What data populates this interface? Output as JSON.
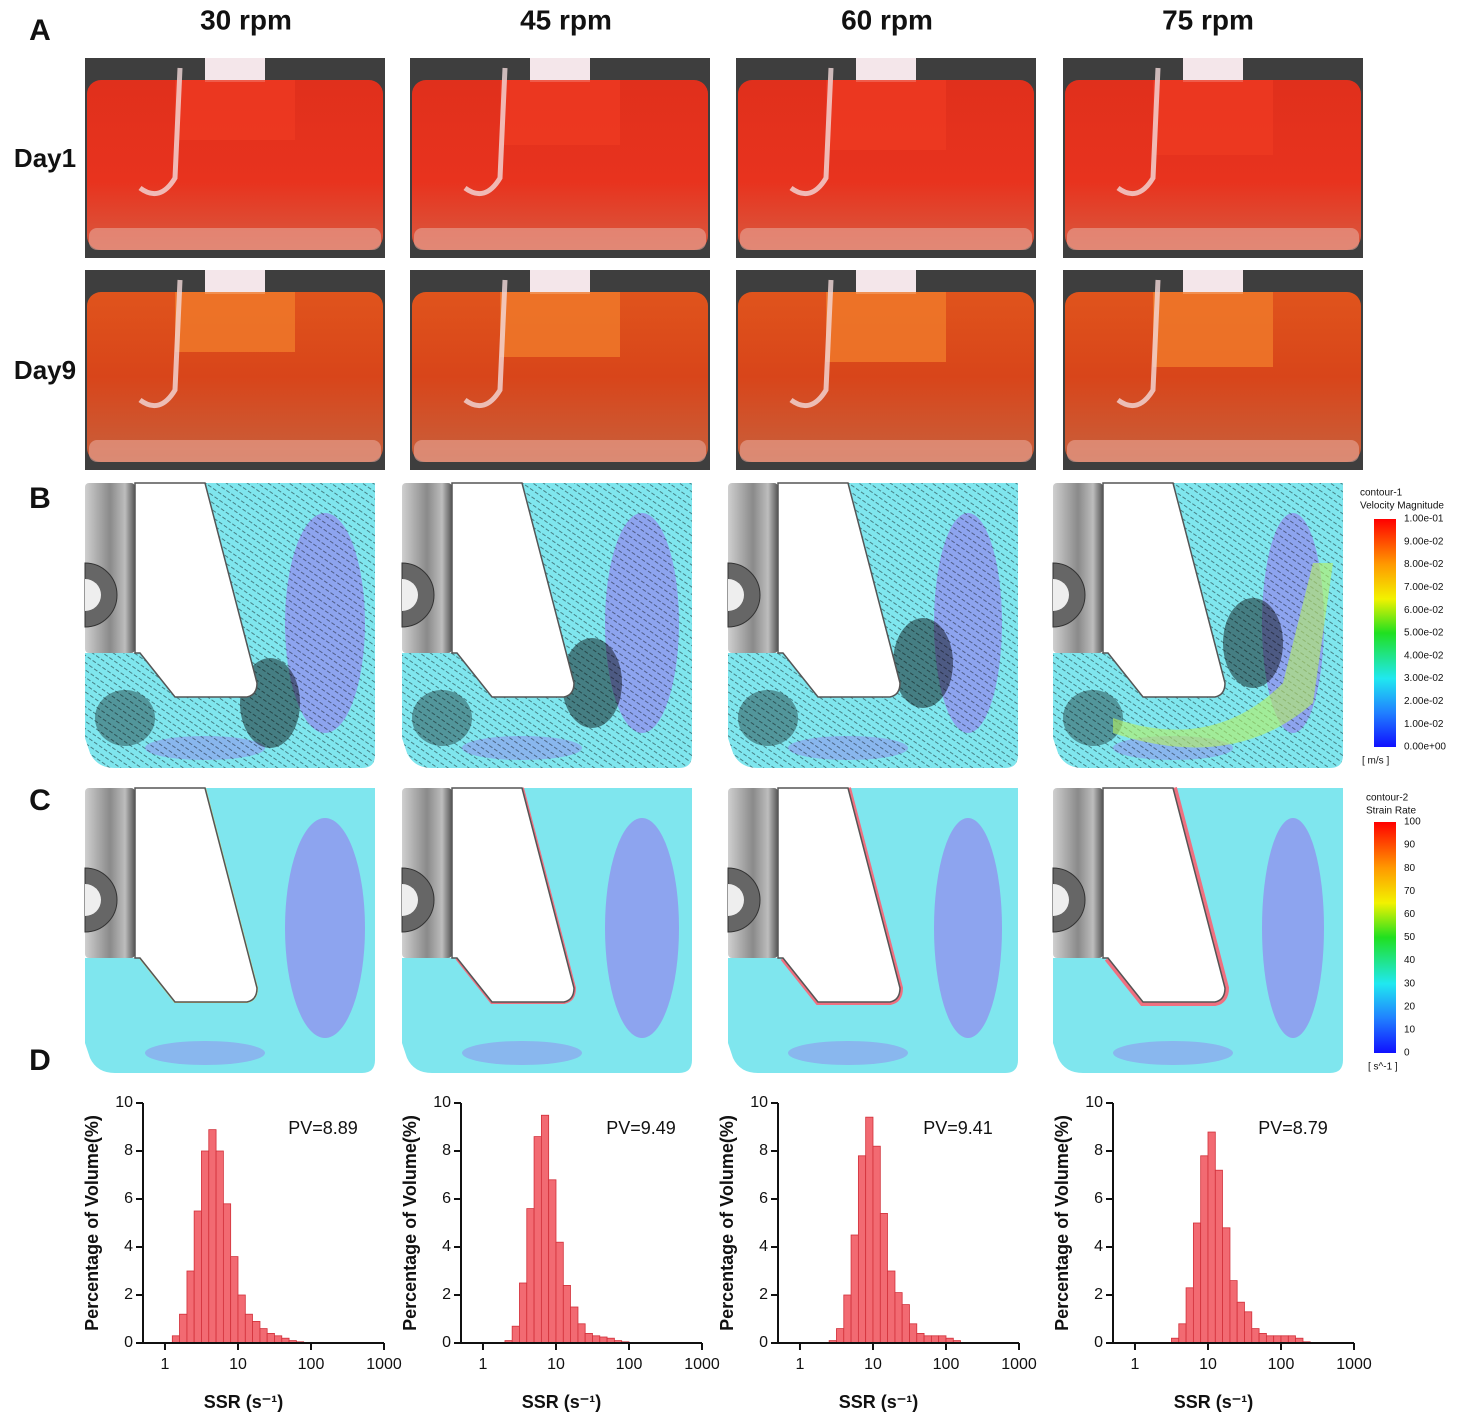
{
  "panel_labels": [
    "A",
    "B",
    "C",
    "D"
  ],
  "columns": [
    "30 rpm",
    "45 rpm",
    "60 rpm",
    "75 rpm"
  ],
  "rows": [
    "Day1",
    "Day9"
  ],
  "colorbar_velocity": {
    "title": "contour-1",
    "quantity": "Velocity Magnitude",
    "unit": "[ m/s ]",
    "labels": [
      "1.00e-01",
      "9.00e-02",
      "8.00e-02",
      "7.00e-02",
      "6.00e-02",
      "5.00e-02",
      "4.00e-02",
      "3.00e-02",
      "2.00e-02",
      "1.00e-02",
      "0.00e+00"
    ]
  },
  "colorbar_strain": {
    "title": "contour-2",
    "quantity": "Strain Rate",
    "unit": "[ s^-1 ]",
    "labels": [
      "100",
      "90",
      "80",
      "70",
      "60",
      "50",
      "40",
      "30",
      "20",
      "10",
      "0"
    ]
  },
  "chart_data": [
    {
      "type": "histogram",
      "annotation": "PV=8.89",
      "xlabel": "SSR (s⁻¹)",
      "ylabel": "Percentage of Volume(%)",
      "xscale": "log",
      "color": "#f26a72",
      "edgecolor": "#d2303a",
      "xlim": [
        0.5,
        1000
      ],
      "xticks": [
        1,
        10,
        100,
        1000
      ],
      "ylim": [
        0,
        10
      ],
      "yticks": [
        0,
        2,
        4,
        6,
        8,
        10
      ],
      "bins": [
        1,
        1.26,
        1.58,
        2,
        2.51,
        3.16,
        3.98,
        5.01,
        6.31,
        7.94,
        10,
        12.6,
        15.8,
        20,
        25.1,
        31.6,
        39.8,
        50.1,
        63.1,
        79.4,
        100,
        126,
        158,
        200,
        251,
        316,
        398,
        501,
        631,
        794,
        1000
      ],
      "values": [
        0,
        0.3,
        1.2,
        3.0,
        5.5,
        8.0,
        8.89,
        8.0,
        5.8,
        3.6,
        2.0,
        1.2,
        0.9,
        0.6,
        0.4,
        0.3,
        0.2,
        0.1,
        0.05,
        0,
        0,
        0,
        0,
        0,
        0,
        0,
        0,
        0,
        0,
        0
      ]
    },
    {
      "type": "histogram",
      "annotation": "PV=9.49",
      "xlabel": "SSR (s⁻¹)",
      "ylabel": "Percentage of Volume(%)",
      "xscale": "log",
      "color": "#f26a72",
      "edgecolor": "#d2303a",
      "xlim": [
        0.5,
        1000
      ],
      "xticks": [
        1,
        10,
        100,
        1000
      ],
      "ylim": [
        0,
        10
      ],
      "yticks": [
        0,
        2,
        4,
        6,
        8,
        10
      ],
      "bins": [
        1,
        1.26,
        1.58,
        2,
        2.51,
        3.16,
        3.98,
        5.01,
        6.31,
        7.94,
        10,
        12.6,
        15.8,
        20,
        25.1,
        31.6,
        39.8,
        50.1,
        63.1,
        79.4,
        100,
        126,
        158,
        200,
        251,
        316,
        398,
        501,
        631,
        794,
        1000
      ],
      "values": [
        0,
        0,
        0,
        0.1,
        0.7,
        2.5,
        5.6,
        8.6,
        9.49,
        6.8,
        4.2,
        2.4,
        1.5,
        0.8,
        0.4,
        0.3,
        0.25,
        0.2,
        0.1,
        0.05,
        0,
        0,
        0,
        0,
        0,
        0,
        0,
        0,
        0,
        0
      ]
    },
    {
      "type": "histogram",
      "annotation": "PV=9.41",
      "xlabel": "SSR (s⁻¹)",
      "ylabel": "Percentage of Volume(%)",
      "xscale": "log",
      "color": "#f26a72",
      "edgecolor": "#d2303a",
      "xlim": [
        0.5,
        1000
      ],
      "xticks": [
        1,
        10,
        100,
        1000
      ],
      "ylim": [
        0,
        10
      ],
      "yticks": [
        0,
        2,
        4,
        6,
        8,
        10
      ],
      "bins": [
        1,
        1.26,
        1.58,
        2,
        2.51,
        3.16,
        3.98,
        5.01,
        6.31,
        7.94,
        10,
        12.6,
        15.8,
        20,
        25.1,
        31.6,
        39.8,
        50.1,
        63.1,
        79.4,
        100,
        126,
        158,
        200,
        251,
        316,
        398,
        501,
        631,
        794,
        1000
      ],
      "values": [
        0,
        0,
        0,
        0,
        0.1,
        0.6,
        2.0,
        4.5,
        7.8,
        9.41,
        8.2,
        5.4,
        3.0,
        2.1,
        1.6,
        0.8,
        0.4,
        0.3,
        0.3,
        0.3,
        0.2,
        0.1,
        0,
        0,
        0,
        0,
        0,
        0,
        0,
        0
      ]
    },
    {
      "type": "histogram",
      "annotation": "PV=8.79",
      "xlabel": "SSR (s⁻¹)",
      "ylabel": "Percentage of Volume(%)",
      "xscale": "log",
      "color": "#f26a72",
      "edgecolor": "#d2303a",
      "xlim": [
        0.5,
        1000
      ],
      "xticks": [
        1,
        10,
        100,
        1000
      ],
      "ylim": [
        0,
        10
      ],
      "yticks": [
        0,
        2,
        4,
        6,
        8,
        10
      ],
      "bins": [
        1,
        1.26,
        1.58,
        2,
        2.51,
        3.16,
        3.98,
        5.01,
        6.31,
        7.94,
        10,
        12.6,
        15.8,
        20,
        25.1,
        31.6,
        39.8,
        50.1,
        63.1,
        79.4,
        100,
        126,
        158,
        200,
        251,
        316,
        398,
        501,
        631,
        794,
        1000
      ],
      "values": [
        0,
        0,
        0,
        0,
        0,
        0.2,
        0.8,
        2.3,
        5.0,
        7.8,
        8.79,
        7.2,
        4.8,
        2.6,
        1.7,
        1.3,
        0.6,
        0.4,
        0.3,
        0.3,
        0.3,
        0.3,
        0.2,
        0.05,
        0,
        0,
        0,
        0,
        0,
        0
      ]
    }
  ]
}
